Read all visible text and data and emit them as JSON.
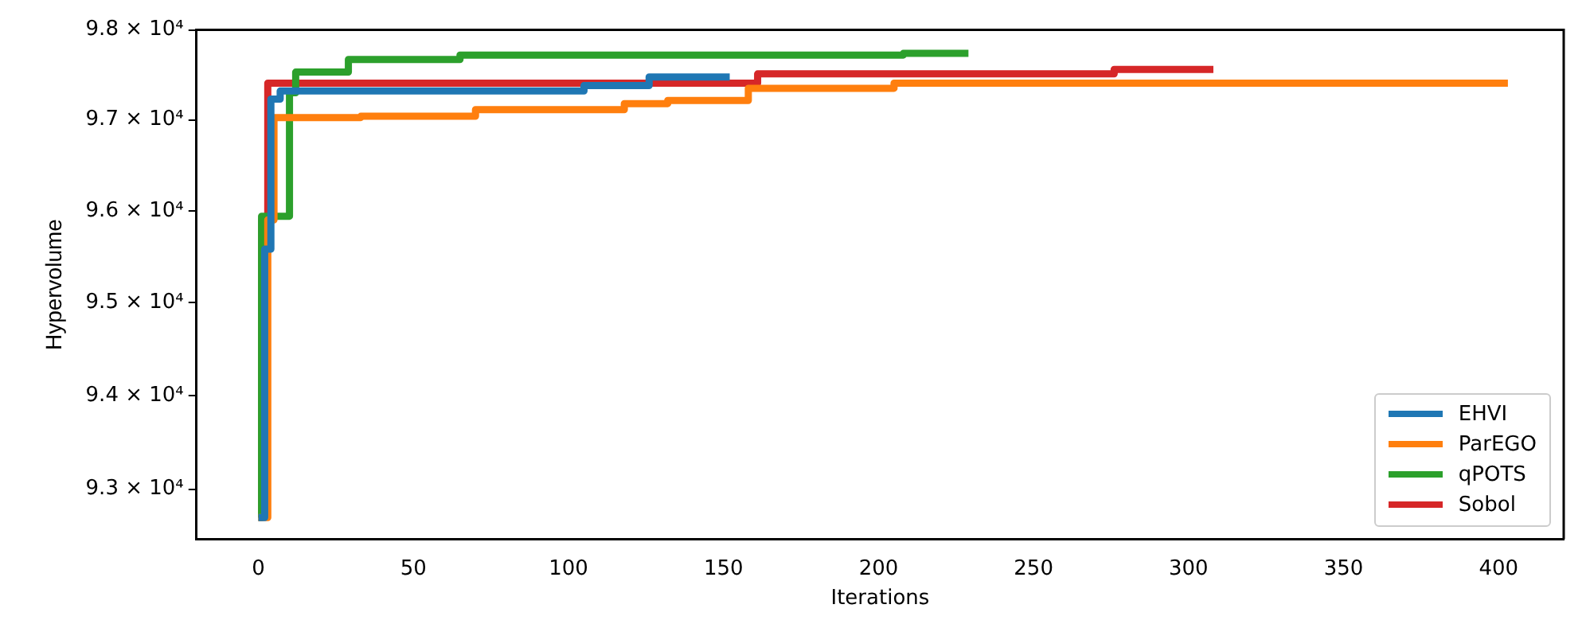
{
  "chart_data": {
    "type": "step",
    "xlabel": "Iterations",
    "ylabel": "Hypervolume",
    "log": true,
    "grid": false,
    "legend": "bottom right",
    "marker": "none",
    "line_style": "solid",
    "xlim": [
      -20,
      421
    ],
    "xticks": [
      0,
      50,
      100,
      150,
      200,
      250,
      300,
      350,
      400
    ],
    "ylim": [
      92470,
      98000
    ],
    "yticks": [
      {
        "value": 93000,
        "label": "9.3 × 10⁴"
      },
      {
        "value": 94000,
        "label": "9.4 × 10⁴"
      },
      {
        "value": 95000,
        "label": "9.5 × 10⁴"
      },
      {
        "value": 96000,
        "label": "9.6 × 10⁴"
      },
      {
        "value": 97000,
        "label": "9.7 × 10⁴"
      },
      {
        "value": 98000,
        "label": "9.8 × 10⁴"
      }
    ],
    "series": [
      {
        "name": "EHVI",
        "color": "#1f77b4",
        "x": [
          0,
          2,
          4,
          7,
          105,
          126,
          152
        ],
        "values": [
          92700,
          95580,
          97230,
          97320,
          97380,
          97475,
          97475
        ]
      },
      {
        "name": "ParEGO",
        "color": "#ff7f0e",
        "x": [
          0,
          3,
          5,
          33,
          70,
          118,
          132,
          158,
          205,
          403
        ],
        "values": [
          92700,
          95900,
          97026,
          97040,
          97113,
          97180,
          97215,
          97350,
          97407,
          97407
        ]
      },
      {
        "name": "qPOTS",
        "color": "#2ca02c",
        "x": [
          0,
          1,
          10,
          12,
          29,
          65,
          208,
          229
        ],
        "values": [
          92700,
          95940,
          97300,
          97530,
          97670,
          97720,
          97738,
          97738
        ]
      },
      {
        "name": "Sobol",
        "color": "#d62728",
        "x": [
          0,
          1,
          3,
          161,
          276,
          308
        ],
        "values": [
          92700,
          95900,
          97407,
          97510,
          97560,
          97560
        ]
      }
    ]
  }
}
